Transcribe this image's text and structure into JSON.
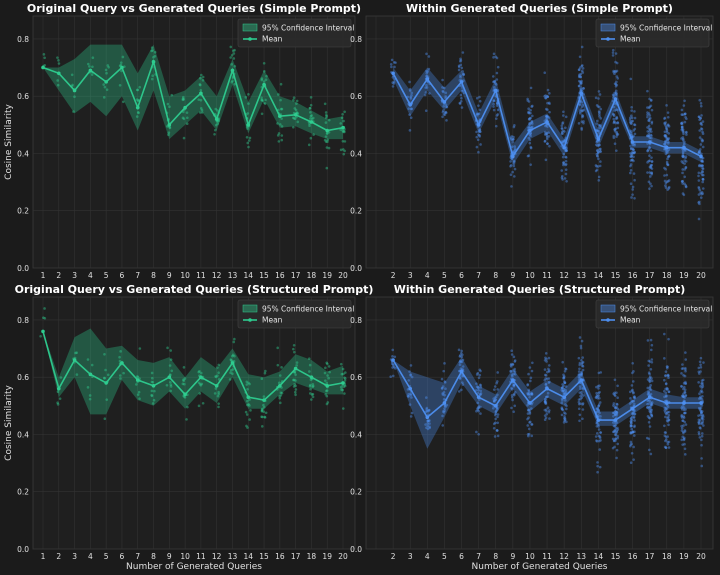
{
  "colors": {
    "background": "#1b1b1b",
    "panel": "#1f1f1f",
    "grid": "#333333",
    "green": "#2ecc8f",
    "blue": "#4d8ff0"
  },
  "chart_data": [
    {
      "type": "line",
      "title": "Original Query vs Generated Queries (Simple Prompt)",
      "xlabel": "",
      "ylabel": "Cosine Similarity",
      "color": "green",
      "x": [
        1,
        2,
        3,
        4,
        5,
        6,
        7,
        8,
        9,
        10,
        11,
        12,
        13,
        14,
        15,
        16,
        17,
        18,
        19,
        20
      ],
      "mean": [
        0.7,
        0.68,
        0.62,
        0.69,
        0.65,
        0.7,
        0.56,
        0.72,
        0.5,
        0.56,
        0.61,
        0.52,
        0.69,
        0.5,
        0.64,
        0.53,
        0.535,
        0.51,
        0.48,
        0.49
      ],
      "ci_low": [
        0.7,
        0.62,
        0.54,
        0.58,
        0.53,
        0.6,
        0.48,
        0.62,
        0.45,
        0.5,
        0.55,
        0.48,
        0.64,
        0.47,
        0.59,
        0.49,
        0.495,
        0.47,
        0.45,
        0.45
      ],
      "ci_high": [
        0.7,
        0.7,
        0.73,
        0.78,
        0.78,
        0.78,
        0.68,
        0.78,
        0.6,
        0.62,
        0.67,
        0.6,
        0.73,
        0.58,
        0.69,
        0.6,
        0.58,
        0.55,
        0.52,
        0.53
      ],
      "ylim": [
        0,
        0.88
      ],
      "yticks": [
        "0.0",
        "0.2",
        "0.4",
        "0.6",
        "0.8"
      ],
      "legend": {
        "ci": "95% Confidence Interval",
        "mean": "Mean",
        "position": "top-right"
      }
    },
    {
      "type": "line",
      "title": "Within Generated Queries (Simple Prompt)",
      "xlabel": "",
      "ylabel": "",
      "color": "blue",
      "x": [
        2,
        3,
        4,
        5,
        6,
        7,
        8,
        9,
        10,
        11,
        12,
        13,
        14,
        15,
        16,
        17,
        18,
        19,
        20
      ],
      "mean": [
        0.68,
        0.57,
        0.66,
        0.58,
        0.65,
        0.5,
        0.62,
        0.39,
        0.48,
        0.51,
        0.42,
        0.61,
        0.45,
        0.59,
        0.44,
        0.44,
        0.42,
        0.42,
        0.39
      ],
      "ci_low": [
        0.66,
        0.53,
        0.62,
        0.55,
        0.62,
        0.47,
        0.59,
        0.36,
        0.45,
        0.48,
        0.39,
        0.58,
        0.42,
        0.56,
        0.42,
        0.42,
        0.4,
        0.4,
        0.37
      ],
      "ci_high": [
        0.7,
        0.62,
        0.7,
        0.63,
        0.69,
        0.54,
        0.66,
        0.43,
        0.51,
        0.54,
        0.45,
        0.64,
        0.48,
        0.62,
        0.46,
        0.46,
        0.44,
        0.44,
        0.41
      ],
      "ylim": [
        0,
        0.88
      ],
      "yticks": [
        "0.0",
        "0.2",
        "0.4",
        "0.6",
        "0.8"
      ],
      "legend": {
        "ci": "95% Confidence Interval",
        "mean": "Mean",
        "position": "top-right"
      }
    },
    {
      "type": "line",
      "title": "Original Query vs Generated Queries (Structured Prompt)",
      "xlabel": "Number of Generated Queries",
      "ylabel": "Cosine Similarity",
      "color": "green",
      "x": [
        1,
        2,
        3,
        4,
        5,
        6,
        7,
        8,
        9,
        10,
        11,
        12,
        13,
        14,
        15,
        16,
        17,
        18,
        19,
        20
      ],
      "mean": [
        0.76,
        0.56,
        0.66,
        0.61,
        0.58,
        0.65,
        0.59,
        0.57,
        0.6,
        0.54,
        0.6,
        0.57,
        0.65,
        0.53,
        0.52,
        0.57,
        0.63,
        0.6,
        0.57,
        0.58
      ],
      "ci_low": [
        0.76,
        0.53,
        0.6,
        0.47,
        0.47,
        0.59,
        0.52,
        0.5,
        0.55,
        0.49,
        0.55,
        0.51,
        0.6,
        0.49,
        0.49,
        0.54,
        0.58,
        0.56,
        0.54,
        0.54
      ],
      "ci_high": [
        0.76,
        0.6,
        0.74,
        0.77,
        0.7,
        0.71,
        0.66,
        0.65,
        0.67,
        0.6,
        0.67,
        0.63,
        0.7,
        0.61,
        0.6,
        0.62,
        0.68,
        0.66,
        0.62,
        0.64
      ],
      "ylim": [
        0,
        0.88
      ],
      "yticks": [
        "0.0",
        "0.2",
        "0.4",
        "0.6",
        "0.8"
      ],
      "legend": {
        "ci": "95% Confidence Interval",
        "mean": "Mean",
        "position": "top-right"
      }
    },
    {
      "type": "line",
      "title": "Within Generated Queries (Structured Prompt)",
      "xlabel": "Number of Generated Queries",
      "ylabel": "",
      "color": "blue",
      "x": [
        2,
        3,
        4,
        5,
        6,
        7,
        8,
        9,
        10,
        11,
        12,
        13,
        14,
        15,
        16,
        17,
        18,
        19,
        20
      ],
      "mean": [
        0.66,
        0.56,
        0.46,
        0.51,
        0.62,
        0.53,
        0.5,
        0.59,
        0.51,
        0.56,
        0.53,
        0.59,
        0.45,
        0.45,
        0.49,
        0.53,
        0.51,
        0.51,
        0.51
      ],
      "ci_low": [
        0.66,
        0.5,
        0.35,
        0.46,
        0.58,
        0.5,
        0.47,
        0.56,
        0.48,
        0.53,
        0.5,
        0.56,
        0.43,
        0.43,
        0.47,
        0.51,
        0.49,
        0.49,
        0.49
      ],
      "ci_high": [
        0.66,
        0.62,
        0.6,
        0.58,
        0.67,
        0.57,
        0.54,
        0.63,
        0.55,
        0.59,
        0.56,
        0.62,
        0.48,
        0.48,
        0.52,
        0.56,
        0.54,
        0.53,
        0.53
      ],
      "ylim": [
        0,
        0.88
      ],
      "yticks": [
        "0.0",
        "0.2",
        "0.4",
        "0.6",
        "0.8"
      ],
      "legend": {
        "ci": "95% Confidence Interval",
        "mean": "Mean",
        "position": "top-right"
      }
    }
  ]
}
